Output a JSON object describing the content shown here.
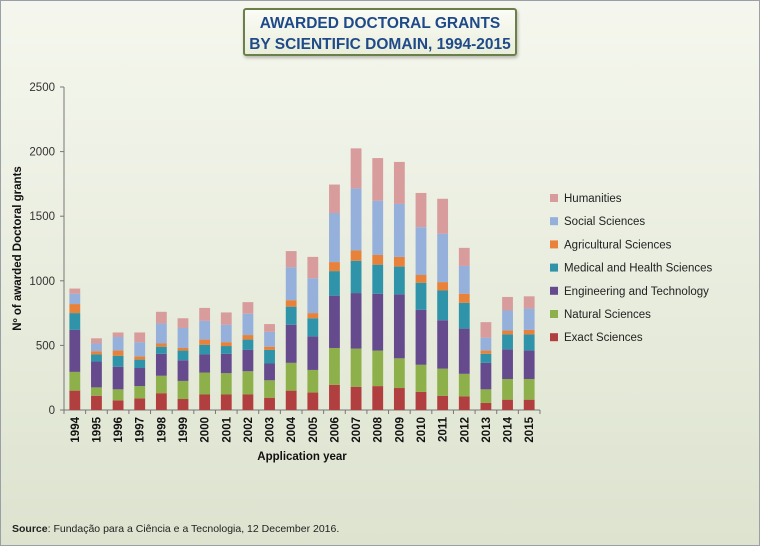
{
  "chart_data": {
    "type": "bar",
    "stacked": true,
    "title_lines": [
      "AWARDED DOCTORAL GRANTS",
      "BY SCIENTIFIC DOMAIN, 1994-2015"
    ],
    "xlabel": "Application year",
    "ylabel": "Nº of awarded Doctoral grants",
    "ylim": [
      0,
      2500
    ],
    "yticks": [
      0,
      500,
      1000,
      1500,
      2000,
      2500
    ],
    "grid": false,
    "legend_position": "right",
    "categories": [
      "1994",
      "1995",
      "1996",
      "1997",
      "1998",
      "1999",
      "2000",
      "2001",
      "2002",
      "2003",
      "2004",
      "2005",
      "2006",
      "2007",
      "2008",
      "2009",
      "2010",
      "2011",
      "2012",
      "2013",
      "2014",
      "2015"
    ],
    "series": [
      {
        "name": "Exact Sciences",
        "color": "#b13f3f",
        "values": [
          150,
          110,
          75,
          90,
          130,
          85,
          120,
          120,
          120,
          95,
          150,
          135,
          195,
          180,
          185,
          170,
          140,
          110,
          105,
          55,
          80,
          80
        ]
      },
      {
        "name": "Natural Sciences",
        "color": "#8db04a",
        "values": [
          145,
          65,
          85,
          95,
          135,
          140,
          170,
          165,
          180,
          135,
          215,
          175,
          285,
          295,
          275,
          230,
          210,
          210,
          175,
          105,
          160,
          160
        ]
      },
      {
        "name": "Engineering and Technology",
        "color": "#654b8e",
        "values": [
          325,
          200,
          175,
          140,
          170,
          160,
          140,
          150,
          165,
          130,
          295,
          260,
          405,
          430,
          440,
          495,
          425,
          375,
          350,
          205,
          230,
          220
        ]
      },
      {
        "name": "Medical and Health Sciences",
        "color": "#2f93a9",
        "values": [
          130,
          55,
          85,
          65,
          55,
          75,
          75,
          60,
          80,
          105,
          140,
          140,
          190,
          250,
          225,
          215,
          210,
          230,
          200,
          70,
          115,
          125
        ]
      },
      {
        "name": "Agricultural Sciences",
        "color": "#e8823a",
        "values": [
          70,
          25,
          40,
          25,
          25,
          20,
          40,
          30,
          35,
          25,
          50,
          40,
          70,
          80,
          75,
          75,
          60,
          65,
          70,
          25,
          30,
          35
        ]
      },
      {
        "name": "Social Sciences",
        "color": "#95b0da",
        "values": [
          80,
          60,
          105,
          110,
          155,
          155,
          145,
          135,
          165,
          115,
          255,
          270,
          380,
          480,
          420,
          410,
          370,
          375,
          215,
          100,
          155,
          165
        ]
      },
      {
        "name": "Humanities",
        "color": "#d89c9c",
        "values": [
          40,
          40,
          35,
          75,
          90,
          75,
          100,
          95,
          90,
          60,
          125,
          165,
          220,
          310,
          330,
          325,
          265,
          270,
          140,
          120,
          105,
          95
        ]
      }
    ]
  },
  "source_label": "Source",
  "source_text": ": Fundação para a Ciência e a Tecnologia, 12 December 2016."
}
